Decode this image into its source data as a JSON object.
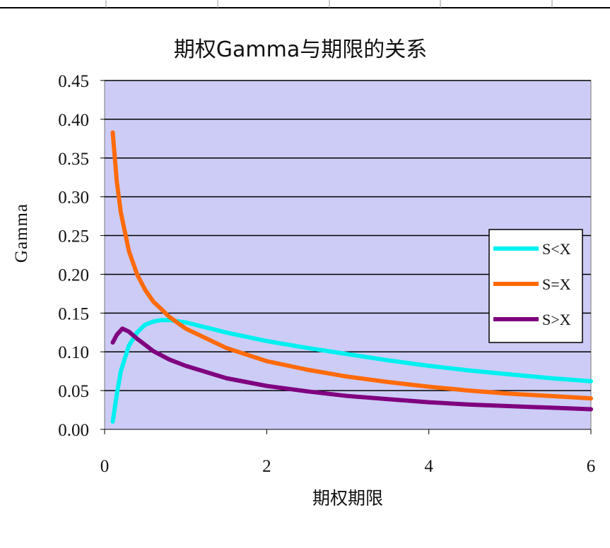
{
  "chart_data": {
    "type": "line",
    "title": "期权Gamma与期限的关系",
    "xlabel": "期权期限",
    "ylabel": "Gamma",
    "xlim": [
      0,
      6
    ],
    "ylim": [
      0,
      0.45
    ],
    "x_ticks": [
      "0",
      "2",
      "4",
      "6"
    ],
    "y_ticks": [
      "0.00",
      "0.05",
      "0.10",
      "0.15",
      "0.20",
      "0.25",
      "0.30",
      "0.35",
      "0.40",
      "0.45"
    ],
    "grid": "horizontal",
    "legend_position": "right",
    "plot_background": "#ccccf6",
    "series": [
      {
        "name": "S<X",
        "color": "#00f0f0",
        "x": [
          0.1,
          0.15,
          0.2,
          0.3,
          0.4,
          0.5,
          0.6,
          0.7,
          0.8,
          1.0,
          1.5,
          2.0,
          2.5,
          3.0,
          3.5,
          4.0,
          4.5,
          5.0,
          5.5,
          6.0
        ],
        "y": [
          0.01,
          0.045,
          0.075,
          0.108,
          0.125,
          0.135,
          0.139,
          0.141,
          0.141,
          0.138,
          0.125,
          0.114,
          0.105,
          0.097,
          0.089,
          0.082,
          0.076,
          0.071,
          0.066,
          0.062
        ]
      },
      {
        "name": "S=X",
        "color": "#ff6a0a",
        "x": [
          0.1,
          0.15,
          0.2,
          0.3,
          0.4,
          0.5,
          0.6,
          0.7,
          0.8,
          1.0,
          1.5,
          2.0,
          2.5,
          3.0,
          3.5,
          4.0,
          4.5,
          5.0,
          5.5,
          6.0
        ],
        "y": [
          0.383,
          0.32,
          0.28,
          0.23,
          0.2,
          0.18,
          0.165,
          0.155,
          0.145,
          0.13,
          0.105,
          0.088,
          0.077,
          0.068,
          0.061,
          0.055,
          0.05,
          0.046,
          0.043,
          0.04
        ]
      },
      {
        "name": "S>X",
        "color": "#7f007f",
        "x": [
          0.1,
          0.15,
          0.22,
          0.3,
          0.4,
          0.5,
          0.6,
          0.8,
          1.0,
          1.5,
          2.0,
          2.5,
          3.0,
          3.5,
          4.0,
          4.5,
          5.0,
          5.5,
          6.0
        ],
        "y": [
          0.112,
          0.122,
          0.13,
          0.126,
          0.117,
          0.109,
          0.101,
          0.09,
          0.082,
          0.066,
          0.056,
          0.049,
          0.043,
          0.039,
          0.035,
          0.032,
          0.03,
          0.028,
          0.026
        ]
      }
    ]
  }
}
